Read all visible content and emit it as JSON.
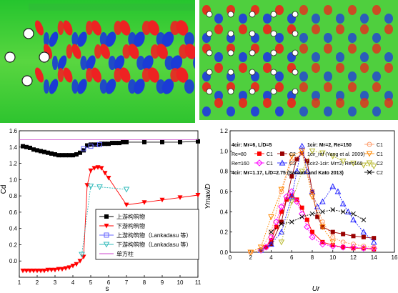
{
  "figure": {
    "panels": [
      "flow-field-staggered-cylinders",
      "flow-field-cylinder-array",
      "cd-versus-spacing",
      "amplitude-versus-velocity"
    ]
  },
  "chart_data": [
    {
      "type": "line",
      "title": "",
      "xlabel": "s",
      "ylabel": "Cd",
      "xlim": [
        1,
        11
      ],
      "ylim": [
        -0.2,
        1.6
      ],
      "xticks": [
        "1",
        "2",
        "3",
        "4",
        "5",
        "6",
        "7",
        "8",
        "9",
        "10",
        "11"
      ],
      "yticks": [
        "0.0",
        "0.2",
        "0.4",
        "0.6",
        "0.8",
        "1.0",
        "1.2",
        "1.4",
        "1.6"
      ],
      "grid": false,
      "legend_placement": "bottom-right",
      "series": [
        {
          "name": "上游构筑物",
          "color": "#000000",
          "marker": "square-filled",
          "x": [
            1.2,
            1.4,
            1.6,
            1.8,
            2,
            2.2,
            2.4,
            2.6,
            2.8,
            3,
            3.2,
            3.4,
            3.6,
            3.8,
            4,
            4.2,
            4.4,
            4.6,
            4.8,
            5,
            5.2,
            5.4,
            5.6,
            5.8,
            6,
            6.2,
            6.4,
            6.6,
            6.8,
            7,
            8,
            9,
            10,
            11
          ],
          "y": [
            1.41,
            1.4,
            1.39,
            1.37,
            1.36,
            1.35,
            1.34,
            1.33,
            1.32,
            1.31,
            1.3,
            1.3,
            1.3,
            1.3,
            1.3,
            1.31,
            1.33,
            1.36,
            1.42,
            1.43,
            1.43,
            1.43,
            1.44,
            1.44,
            1.44,
            1.45,
            1.45,
            1.45,
            1.46,
            1.46,
            1.46,
            1.46,
            1.46,
            1.47
          ]
        },
        {
          "name": "下游构筑物",
          "color": "#ff0000",
          "marker": "triangle-down-filled",
          "x": [
            1.2,
            1.4,
            1.6,
            1.8,
            2,
            2.2,
            2.4,
            2.6,
            2.8,
            3,
            3.2,
            3.4,
            3.6,
            3.8,
            4,
            4.2,
            4.4,
            4.6,
            4.8,
            5,
            5.2,
            5.4,
            5.6,
            5.8,
            6,
            7,
            8,
            9,
            10,
            11
          ],
          "y": [
            -0.12,
            -0.12,
            -0.12,
            -0.12,
            -0.12,
            -0.12,
            -0.12,
            -0.11,
            -0.11,
            -0.11,
            -0.1,
            -0.1,
            -0.09,
            -0.08,
            -0.06,
            -0.04,
            0.0,
            0.05,
            0.93,
            1.11,
            1.14,
            1.15,
            1.14,
            1.08,
            1.02,
            0.69,
            0.72,
            0.75,
            0.78,
            0.81
          ]
        },
        {
          "name": "上游构筑物（Lankadasu 等）",
          "color": "#6666ff",
          "marker": "square-open",
          "x": [
            4.6,
            5,
            5.5
          ],
          "y": [
            1.38,
            1.41,
            1.43
          ]
        },
        {
          "name": "下游构筑物（Lankadasu 等）",
          "color": "#33bbbb",
          "marker": "triangle-down-open",
          "x": [
            4.5,
            5,
            5.5,
            7
          ],
          "y": [
            0.08,
            0.92,
            0.91,
            0.88
          ]
        },
        {
          "name": "单方柱",
          "color": "#cc44cc",
          "marker": "none",
          "x": [
            1,
            11
          ],
          "y": [
            1.49,
            1.49
          ]
        }
      ]
    },
    {
      "type": "line",
      "title": "",
      "xlabel": "Ur",
      "ylabel": "Ymax/D",
      "xlim": [
        0,
        16
      ],
      "ylim": [
        0,
        1.2
      ],
      "xticks": [
        "0",
        "2",
        "4",
        "6",
        "8",
        "10",
        "12",
        "14",
        "16"
      ],
      "yticks": [
        "0.0",
        "0.2",
        "0.4",
        "0.6",
        "0.8",
        "1.0",
        "1.2"
      ],
      "grid": false,
      "legend_placement": "top",
      "legend_lines": {
        "cir4_title": "4cir: Mr=6, L/D=5",
        "cir1_title": "1cir: Mr=2, Re=150",
        "re80": "Re=80",
        "re160": "Re=160",
        "c1": "C1",
        "c2": "C2",
        "yang": "1cir_ref (Yang et al. 2009)",
        "cir12": "1cir2-1cir: Mr=2, Re=160",
        "sanaati": "4cir: Mr=1.17, L/D=2.75 (Sanaati and Kato 2013)"
      },
      "series": [
        {
          "name": "Re=80 C1",
          "color": "#ff0000",
          "marker": "square-filled",
          "x": [
            3,
            3.5,
            4,
            4.5,
            5,
            5.5,
            6,
            6.5,
            7,
            7.5,
            8,
            9,
            10,
            11,
            12,
            13,
            14
          ],
          "y": [
            0.02,
            0.05,
            0.12,
            0.25,
            0.4,
            0.52,
            0.56,
            0.52,
            0.44,
            0.32,
            0.2,
            0.1,
            0.07,
            0.05,
            0.04,
            0.04,
            0.03
          ]
        },
        {
          "name": "Re=80 C2",
          "color": "#990000",
          "marker": "square-filled",
          "x": [
            3,
            4,
            5,
            6,
            6.5,
            7,
            7.5,
            8,
            8.5,
            9,
            10,
            11,
            12,
            13,
            14
          ],
          "y": [
            0.02,
            0.08,
            0.3,
            0.75,
            0.92,
            0.98,
            0.9,
            0.6,
            0.35,
            0.25,
            0.2,
            0.18,
            0.16,
            0.15,
            0.14
          ]
        },
        {
          "name": "Re=160 C1",
          "color": "#ff00ff",
          "marker": "diamond-open",
          "x": [
            3,
            3.5,
            4,
            4.5,
            5,
            5.5,
            6,
            6.5,
            7,
            7.5,
            8,
            9,
            10,
            11,
            12,
            13,
            14
          ],
          "y": [
            0.02,
            0.05,
            0.15,
            0.3,
            0.45,
            0.55,
            0.6,
            0.5,
            0.38,
            0.25,
            0.15,
            0.08,
            0.06,
            0.05,
            0.05,
            0.04,
            0.04
          ]
        },
        {
          "name": "Re=160 C2",
          "color": "#2222ff",
          "marker": "triangle-up-open",
          "x": [
            3,
            4,
            5,
            6,
            6.5,
            7,
            7.5,
            8,
            8.5,
            9,
            10,
            10.5,
            11,
            11.5,
            12,
            13,
            14
          ],
          "y": [
            0.02,
            0.08,
            0.2,
            0.55,
            0.8,
            1.05,
            0.8,
            0.6,
            0.45,
            0.5,
            0.65,
            0.6,
            0.48,
            0.4,
            0.32,
            0.2,
            0.1
          ]
        },
        {
          "name": "1cir C1",
          "color": "#ff9966",
          "marker": "circle-open",
          "x": [
            2,
            3,
            4,
            5,
            6,
            7,
            8,
            9,
            10,
            11,
            12,
            13,
            14
          ],
          "y": [
            0.0,
            0.02,
            0.2,
            0.6,
            0.9,
            0.98,
            0.6,
            0.3,
            0.15,
            0.1,
            0.08,
            0.06,
            0.05
          ]
        },
        {
          "name": "1cir ref C1",
          "color": "#ff8800",
          "marker": "triangle-down-open",
          "x": [
            2,
            3,
            4,
            5,
            6,
            7,
            8,
            9,
            10
          ],
          "y": [
            0.0,
            0.05,
            0.35,
            0.62,
            0.95,
            1.0,
            0.55,
            0.25,
            0.1
          ]
        },
        {
          "name": "1cir2-1cir C2",
          "color": "#bbbb33",
          "marker": "triangle-down-open",
          "x": [
            5,
            6,
            7,
            8,
            9,
            10,
            11,
            12,
            13,
            14
          ],
          "y": [
            0.1,
            0.5,
            0.8,
            1.0,
            0.98,
            0.95,
            0.9,
            0.88,
            0.86,
            0.85
          ]
        },
        {
          "name": "Sanaati C2",
          "color": "#000000",
          "marker": "cross",
          "x": [
            4,
            5,
            6,
            7,
            8,
            9,
            10,
            11,
            12,
            13
          ],
          "y": [
            0.2,
            0.28,
            0.3,
            0.35,
            0.38,
            0.4,
            0.42,
            0.4,
            0.38,
            0.32
          ]
        }
      ]
    }
  ]
}
